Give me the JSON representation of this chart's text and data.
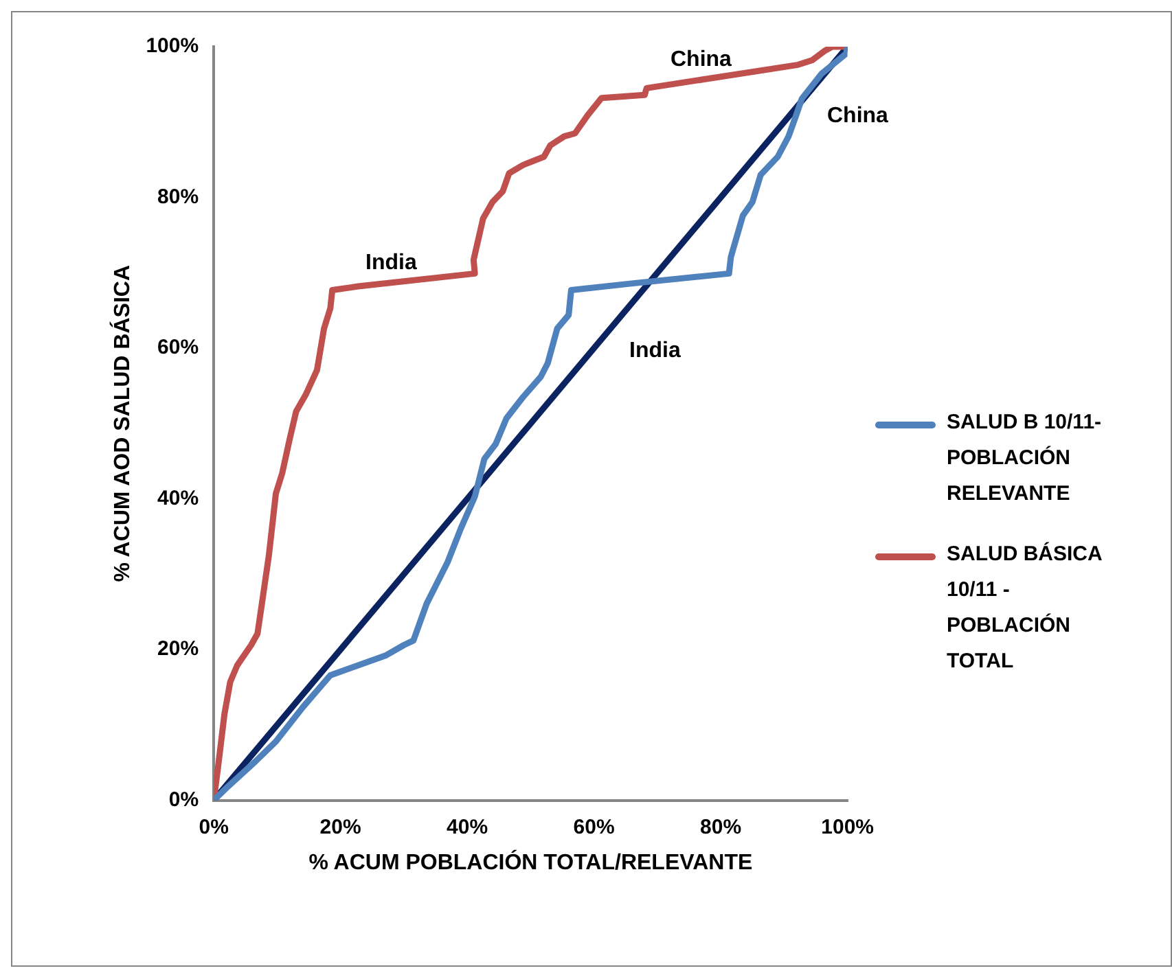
{
  "chart_data": {
    "type": "line",
    "xlabel": "% ACUM POBLACIÓN TOTAL/RELEVANTE",
    "ylabel": "% ACUM AOD SALUD BÁSICA",
    "xlim": [
      0,
      100
    ],
    "ylim": [
      0,
      100
    ],
    "xticks": [
      {
        "value": 0,
        "label": "0%"
      },
      {
        "value": 20,
        "label": "20%"
      },
      {
        "value": 40,
        "label": "40%"
      },
      {
        "value": 60,
        "label": "60%"
      },
      {
        "value": 80,
        "label": "80%"
      },
      {
        "value": 100,
        "label": "100%"
      }
    ],
    "yticks": [
      {
        "value": 0,
        "label": "0%"
      },
      {
        "value": 20,
        "label": "20%"
      },
      {
        "value": 40,
        "label": "40%"
      },
      {
        "value": 60,
        "label": "60%"
      },
      {
        "value": 80,
        "label": "80%"
      },
      {
        "value": 100,
        "label": "100%"
      }
    ],
    "grid": false,
    "legend": "right",
    "marker": "none",
    "line_style": "solid",
    "series": [
      {
        "name": "SALUD B 10/11- POBLACIÓN RELEVANTE",
        "color": "#4f81bd",
        "x": [
          0,
          2.2,
          6.5,
          9.8,
          14.1,
          18.4,
          27.1,
          30,
          31.5,
          33.6,
          36.9,
          39,
          41.2,
          42.7,
          44.5,
          46.2,
          48.8,
          51.6,
          52.7,
          54.2,
          56,
          56.4,
          66.2,
          81.3,
          81.6,
          83.5,
          85,
          86.3,
          89,
          90.7,
          91.9,
          92.8,
          95.9,
          99.8,
          100
        ],
        "values": [
          0,
          1.8,
          5.1,
          7.8,
          12.4,
          16.6,
          19.2,
          20.6,
          21.2,
          26.1,
          31.6,
          36.1,
          40.3,
          45.3,
          47.3,
          50.7,
          53.5,
          56.2,
          58,
          62.6,
          64.4,
          67.7,
          68.6,
          69.9,
          72.1,
          77.6,
          79.4,
          83,
          85.4,
          88.1,
          90.9,
          93.1,
          96.4,
          99.1,
          100
        ]
      },
      {
        "name": "SALUD BÁSICA 10/11 - POBLACIÓN TOTAL",
        "color": "#c0504d",
        "x": [
          0,
          0.65,
          1.7,
          2.6,
          3.7,
          5.9,
          6.9,
          7.6,
          8.7,
          9.8,
          10.8,
          12,
          13,
          14.5,
          16.3,
          17.4,
          18.4,
          18.7,
          22.8,
          41.2,
          41,
          42.5,
          44,
          45.6,
          46.6,
          48.8,
          52.1,
          53.1,
          55.3,
          57,
          59,
          61.2,
          68,
          68.3,
          92.2,
          94.4,
          96.5,
          97.6,
          100
        ],
        "values": [
          0,
          4.2,
          11.5,
          15.7,
          17.9,
          20.6,
          22.1,
          26.1,
          32.5,
          40.7,
          43.4,
          48,
          51.6,
          53.8,
          57.1,
          62.6,
          65.3,
          67.7,
          68.2,
          69.9,
          71.7,
          77.2,
          79.4,
          80.8,
          83.2,
          84.3,
          85.4,
          86.9,
          88.1,
          88.5,
          90.9,
          93.2,
          93.6,
          94.5,
          97.6,
          98.2,
          99.5,
          100,
          100
        ]
      },
      {
        "color": "#0b2461",
        "x": [
          0,
          100
        ],
        "values": [
          0,
          100
        ]
      }
    ],
    "annotations": [
      "India",
      "China",
      "India",
      "China"
    ]
  }
}
